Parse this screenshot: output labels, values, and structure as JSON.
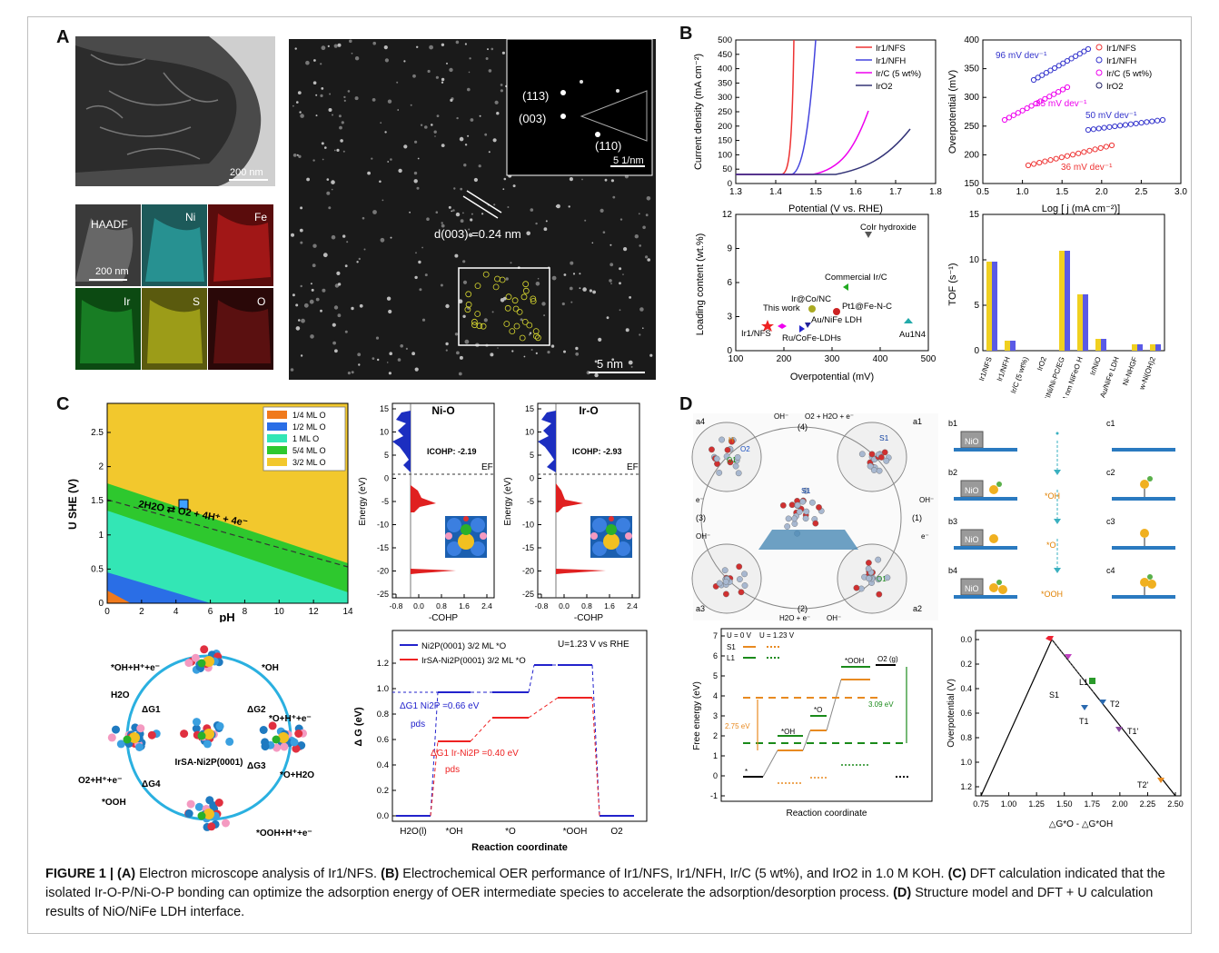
{
  "panel_labels": [
    "A",
    "B",
    "C",
    "D"
  ],
  "panelA": {
    "scale_bar_top": "200 nm",
    "map_labels": [
      "HAADF",
      "Ni",
      "Fe",
      "Ir",
      "S",
      "O"
    ],
    "scale_bar_map": "200 nm",
    "saed_labels": [
      "(113)",
      "(003)",
      "(110)"
    ],
    "saed_scale": "5 1/nm",
    "d_spacing": "d(003) =0.24 nm",
    "hr_scale": "5  nm"
  },
  "panelB": {
    "lsv": {
      "xlabel": "Potential (V vs. RHE)",
      "ylabel": "Current density (mA cm⁻²)",
      "xticks": [
        "1.3",
        "1.4",
        "1.5",
        "1.6",
        "1.7",
        "1.8"
      ],
      "yticks": [
        "0",
        "50",
        "100",
        "150",
        "200",
        "250",
        "300",
        "350",
        "400",
        "450",
        "500"
      ],
      "legend": [
        "Ir1/NFS",
        "Ir1/NFH",
        "Ir/C (5 wt%)",
        "IrO2"
      ]
    },
    "tafel": {
      "xlabel": "Log [ j (mA cm⁻²)]",
      "ylabel": "Overpotential (mV)",
      "xticks": [
        "0.5",
        "1.0",
        "1.5",
        "2.0",
        "2.5",
        "3.0"
      ],
      "yticks": [
        "150",
        "200",
        "250",
        "300",
        "350",
        "400"
      ],
      "legend": [
        "Ir1/NFS",
        "Ir1/NFH",
        "Ir/C (5 wt%)",
        "IrO2"
      ],
      "slopes": [
        "96 mV dev⁻¹",
        "85 mV dev⁻¹",
        "50 mV dev⁻¹",
        "36 mV dev⁻¹"
      ]
    },
    "loading": {
      "xlabel": "Overpotential (mV)",
      "ylabel": "Loading content (wt.%)",
      "xticks": [
        "100",
        "200",
        "300",
        "400",
        "500"
      ],
      "yticks": [
        "0",
        "3",
        "6",
        "9",
        "12"
      ],
      "points": [
        "This work",
        "Ir1/NFS",
        "Ir@Co/NC",
        "Pt1@Fe-N-C",
        "Au/NiFe LDH",
        "Ru/CoFe-LDHs",
        "Commercial Ir/C",
        "CoIr hydroxide",
        "Au1N4"
      ]
    },
    "tof": {
      "ylabel": "TOF (s⁻¹)",
      "yticks": [
        "0",
        "5",
        "10",
        "15"
      ],
      "categories": [
        "Ir1/NFS",
        "Ir1/NFH",
        "Ir/C (5 wt%)",
        "IrO2",
        "SINi/Ni-PC/EG",
        "5.4 nm NiFeO H",
        "Ir/NiO",
        "Au/NiFe LDH",
        "Ni-NHGF",
        "w-Ni(OH)2"
      ]
    }
  },
  "panelC": {
    "pourbaix": {
      "xlabel": "pH",
      "ylabel": "U SHE (V)",
      "xticks": [
        "0",
        "2",
        "4",
        "6",
        "8",
        "10",
        "12",
        "14"
      ],
      "yticks": [
        "0",
        "0.5",
        "1",
        "1.5",
        "2",
        "2.5"
      ],
      "legend": [
        "1/4 ML O",
        "1/2 ML O",
        "1   ML O",
        "5/4 ML O",
        "3/2 ML O"
      ],
      "reaction": "2H2O  ⇄  O2 + 4H⁺ + 4e⁻"
    },
    "cohp_nio": {
      "title": "Ni-O",
      "icohp": "ICOHP: -2.19",
      "ef": "EF",
      "xlabel": "-COHP",
      "ylabel": "Energy (eV)",
      "xticks": [
        "-0.8",
        "0.0",
        "0.8",
        "1.6",
        "2.4"
      ],
      "yticks": [
        "15",
        "10",
        "5",
        "0",
        "-5",
        "-10",
        "-15",
        "-20",
        "-25"
      ]
    },
    "cohp_iro": {
      "title": "Ir-O",
      "icohp": "ICOHP: -2.93",
      "ef": "EF",
      "xlabel": "-COHP",
      "ylabel": "Energy (eV)",
      "xticks": [
        "-0.8",
        "0.0",
        "0.8",
        "1.6",
        "2.4"
      ],
      "yticks": [
        "15",
        "10",
        "5",
        "0",
        "-5",
        "-10",
        "-15",
        "-20",
        "-25"
      ]
    },
    "cycle": {
      "center": "IrSA-Ni2P(0001)",
      "labels": [
        "*OH+H⁺+e⁻",
        "*OH",
        "H2O",
        "ΔG1",
        "ΔG2",
        "*O+H⁺+e⁻",
        "*O+H2O",
        "ΔG3",
        "*OOH+H⁺+e⁻",
        "O2+H⁺+e⁻",
        "ΔG4",
        "*OOH"
      ]
    },
    "energy": {
      "legend": [
        "Ni2P(0001)  3/2 ML *O",
        "IrSA-Ni2P(0001)  3/2 ML *O"
      ],
      "condition": "U=1.23 V vs RHE",
      "xlabel": "Reaction coordinate",
      "ylabel": "Δ G (eV)",
      "xticks": [
        "H2O(l)",
        "*OH",
        "*O",
        "*OOH",
        "O2"
      ],
      "yticks": [
        "0.0",
        "0.2",
        "0.4",
        "0.6",
        "0.8",
        "1.0",
        "1.2"
      ],
      "annotations": [
        "ΔG1 Ni2P =0.66 eV",
        "ΔG1 Ir-Ni2P =0.40 eV",
        "pds",
        "pds"
      ]
    }
  },
  "panelD": {
    "model": {
      "labels": [
        "a4",
        "a1",
        "a3",
        "a2",
        "S1",
        "S1",
        "O1",
        "O2",
        "H",
        "O1",
        "(4)",
        "(1)",
        "(3)",
        "(2)",
        "OH⁻",
        "O2 + H2O + e⁻",
        "OH⁻",
        "e⁻",
        "e⁻",
        "OH⁻",
        "H2O + e⁻",
        "OH⁻"
      ]
    },
    "states": {
      "b": [
        "b1",
        "b2",
        "b3",
        "b4"
      ],
      "nio": "NiO",
      "species": [
        "*OH",
        "*O",
        "*OOH"
      ],
      "c": [
        "c1",
        "c2",
        "c3",
        "c4"
      ]
    },
    "free_energy": {
      "xlabel": "Reaction coordinate",
      "ylabel": "Free energy (eV)",
      "legend_head": [
        "U = 0 V",
        "U = 1.23 V"
      ],
      "legend": [
        "S1",
        "L1"
      ],
      "yticks": [
        "-1",
        "0",
        "1",
        "2",
        "3",
        "4",
        "5",
        "6",
        "7"
      ],
      "labels": [
        "*",
        "*OH",
        "*O",
        "*OOH",
        "O2 (g)",
        "2.75 eV",
        "3.09 eV"
      ]
    },
    "volcano": {
      "xlabel": "△G*O - △G*OH",
      "ylabel": "Overpotential (V)",
      "xticks": [
        "0.75",
        "1.00",
        "1.25",
        "1.50",
        "1.75",
        "2.00",
        "2.25",
        "2.50"
      ],
      "yticks": [
        "0.0",
        "0.2",
        "0.4",
        "0.6",
        "0.8",
        "1.0",
        "1.2"
      ],
      "points": [
        "S1",
        "L1",
        "T2",
        "T1",
        "T1'",
        "T2'"
      ]
    }
  },
  "caption": {
    "figure": "FIGURE 1 |",
    "a_tag": "(A)",
    "a_text": " Electron microscope analysis of Ir1/NFS. ",
    "b_tag": "(B)",
    "b_text": " Electrochemical OER performance of Ir1/NFS, Ir1/NFH, Ir/C (5 wt%), and IrO2 in 1.0 M KOH. ",
    "c_tag": "(C)",
    "c_text": " DFT calculation indicated that the isolated Ir-O-P/Ni-O-P bonding can optimize the adsorption energy of OER intermediate species to accelerate the adsorption/desorption process. ",
    "d_tag": "(D)",
    "d_text": " Structure model and DFT + U calculation results of NiO/NiFe LDH interface."
  }
}
